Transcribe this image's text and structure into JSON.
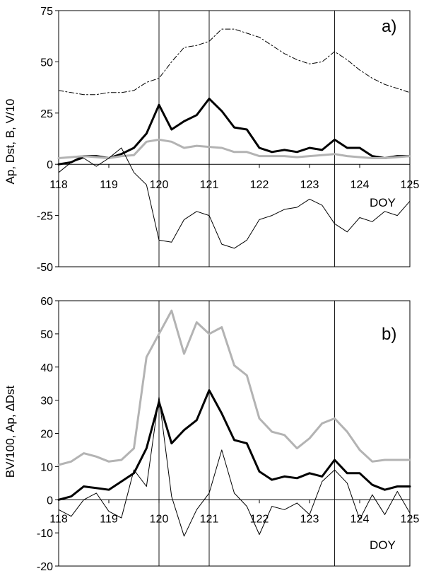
{
  "chart_data": [
    {
      "type": "line",
      "panel_label": "a)",
      "ylabel": "Ap, Dst, B, V/10",
      "xlabel": "DOY",
      "xlim": [
        118,
        125
      ],
      "ylim": [
        -50,
        75
      ],
      "x_ticks": [
        "118",
        "119",
        "120",
        "121",
        "122",
        "123",
        "124",
        "125"
      ],
      "y_ticks": [
        "75",
        "50",
        "25",
        "0",
        "-25",
        "-50"
      ],
      "vlines": [
        120,
        121,
        123.5
      ],
      "x": [
        118,
        118.125,
        118.25,
        118.375,
        118.5,
        118.625,
        118.75,
        118.875,
        119,
        119.125,
        119.25,
        119.375,
        119.5,
        119.625,
        119.75,
        119.875,
        120,
        120.125,
        120.25,
        120.375,
        120.5,
        120.625,
        120.75,
        120.875,
        121,
        121.125,
        121.25,
        121.375,
        121.5,
        121.625,
        121.75,
        121.875,
        122,
        122.125,
        122.25,
        122.375,
        122.5,
        122.625,
        122.75,
        122.875,
        123,
        123.125,
        123.25,
        123.375,
        123.5,
        123.625,
        123.75,
        123.875,
        124,
        124.125,
        124.25,
        124.375,
        124.5,
        124.625,
        124.75,
        124.875,
        125
      ],
      "series": [
        {
          "name": "V/10",
          "style": "dashdot",
          "color": "#000000",
          "width": 1,
          "x": [
            118,
            118.25,
            118.5,
            118.75,
            119,
            119.25,
            119.5,
            119.75,
            120,
            120.25,
            120.5,
            120.75,
            121,
            121.25,
            121.5,
            121.75,
            122,
            122.25,
            122.5,
            122.75,
            123,
            123.25,
            123.5,
            123.75,
            124,
            124.25,
            124.5,
            124.75,
            125
          ],
          "values": [
            36,
            35,
            34,
            34,
            35,
            35,
            36,
            40,
            42,
            50,
            57,
            58,
            60,
            66,
            66,
            64,
            62,
            58,
            54,
            51,
            49,
            50,
            55,
            51,
            46,
            42,
            39,
            37,
            35
          ]
        },
        {
          "name": "Ap",
          "style": "solid",
          "color": "#000000",
          "width": 3,
          "x": [
            118,
            118.25,
            118.5,
            118.75,
            119,
            119.25,
            119.5,
            119.75,
            120,
            120.25,
            120.5,
            120.75,
            121,
            121.25,
            121.5,
            121.75,
            122,
            122.25,
            122.5,
            122.75,
            123,
            123.25,
            123.5,
            123.75,
            124,
            124.25,
            124.5,
            124.75,
            125
          ],
          "values": [
            0,
            1,
            4,
            4,
            3,
            5,
            8,
            15,
            29,
            17,
            21,
            24,
            32,
            26,
            18,
            17,
            8,
            6,
            7,
            6,
            8,
            7,
            12,
            8,
            8,
            4,
            3,
            4,
            4
          ]
        },
        {
          "name": "B",
          "style": "solid",
          "color": "#b3b3b3",
          "width": 3,
          "x": [
            118,
            118.25,
            118.5,
            118.75,
            119,
            119.25,
            119.5,
            119.75,
            120,
            120.25,
            120.5,
            120.75,
            121,
            121.25,
            121.5,
            121.75,
            122,
            122.25,
            122.5,
            122.75,
            123,
            123.25,
            123.5,
            123.75,
            124,
            124.25,
            124.5,
            124.75,
            125
          ],
          "values": [
            3,
            3.5,
            4,
            3.5,
            3,
            4,
            4.5,
            11,
            12,
            11,
            8,
            9,
            8.5,
            8,
            6,
            6,
            4,
            4,
            4,
            3.5,
            4,
            4.5,
            5,
            4,
            3.5,
            3,
            3,
            3.5,
            4
          ]
        },
        {
          "name": "Dst",
          "style": "solid",
          "color": "#000000",
          "width": 1,
          "x": [
            118,
            118.25,
            118.5,
            118.75,
            119,
            119.25,
            119.5,
            119.75,
            120,
            120.25,
            120.5,
            120.75,
            121,
            121.25,
            121.5,
            121.75,
            122,
            122.25,
            122.5,
            122.75,
            123,
            123.25,
            123.5,
            123.75,
            124,
            124.25,
            124.5,
            124.75,
            125
          ],
          "values": [
            -4,
            1,
            3,
            -1,
            3,
            8,
            -4,
            -10,
            -37,
            -38,
            -27,
            -23,
            -25,
            -39,
            -41,
            -37,
            -27,
            -25,
            -22,
            -21,
            -17,
            -20,
            -29,
            -33,
            -26,
            -28,
            -23,
            -25,
            -18
          ]
        }
      ]
    },
    {
      "type": "line",
      "panel_label": "b)",
      "ylabel": "BV/100, Ap, ∆Dst",
      "xlabel": "DOY",
      "xlim": [
        118,
        125
      ],
      "ylim": [
        -20,
        60
      ],
      "x_ticks": [
        "118",
        "119",
        "120",
        "121",
        "122",
        "123",
        "124",
        "125"
      ],
      "y_ticks": [
        "60",
        "50",
        "40",
        "30",
        "20",
        "10",
        "0",
        "-10",
        "-20"
      ],
      "vlines": [
        120,
        121,
        123.5
      ],
      "series": [
        {
          "name": "BV/100",
          "style": "solid",
          "color": "#b3b3b3",
          "width": 3,
          "x": [
            118,
            118.25,
            118.5,
            118.75,
            119,
            119.25,
            119.5,
            119.75,
            120,
            120.25,
            120.5,
            120.75,
            121,
            121.25,
            121.5,
            121.75,
            122,
            122.25,
            122.5,
            122.75,
            123,
            123.25,
            123.5,
            123.75,
            124,
            124.25,
            124.5,
            124.75,
            125
          ],
          "values": [
            10.5,
            11.5,
            14,
            13,
            11.5,
            12,
            15.5,
            43,
            50,
            57,
            44,
            53.5,
            50,
            52,
            40.5,
            37.5,
            24.5,
            20.5,
            19.5,
            15.5,
            18.5,
            23,
            24.5,
            20.5,
            15,
            11.5,
            12,
            12,
            12
          ]
        },
        {
          "name": "Ap",
          "style": "solid",
          "color": "#000000",
          "width": 3,
          "x": [
            118,
            118.25,
            118.5,
            118.75,
            119,
            119.25,
            119.5,
            119.75,
            120,
            120.25,
            120.5,
            120.75,
            121,
            121.25,
            121.5,
            121.75,
            122,
            122.25,
            122.5,
            122.75,
            123,
            123.25,
            123.5,
            123.75,
            124,
            124.25,
            124.5,
            124.75,
            125
          ],
          "values": [
            0,
            1,
            4,
            3.5,
            3,
            5.5,
            8,
            15.5,
            29.5,
            17,
            21,
            24,
            33,
            26,
            18,
            17,
            8.5,
            6,
            7,
            6.5,
            8,
            7,
            12,
            8,
            8,
            4.5,
            3,
            4,
            4
          ]
        },
        {
          "name": "∆Dst",
          "style": "solid",
          "color": "#000000",
          "width": 1,
          "x": [
            118,
            118.25,
            118.5,
            118.75,
            119,
            119.25,
            119.5,
            119.75,
            120,
            120.25,
            120.5,
            120.75,
            121,
            121.25,
            121.5,
            121.75,
            122,
            122.25,
            122.5,
            122.75,
            123,
            123.25,
            123.5,
            123.75,
            124,
            124.25,
            124.5,
            124.75,
            125
          ],
          "values": [
            -3,
            -5,
            0,
            2,
            -3.5,
            -5.5,
            9,
            4,
            31,
            1,
            -11,
            -3,
            2,
            15,
            2,
            -2,
            -10.5,
            -2,
            -3,
            -1,
            -4.5,
            5.5,
            9,
            5,
            -6,
            1.5,
            -4.5,
            2.5,
            -4
          ]
        }
      ]
    }
  ]
}
